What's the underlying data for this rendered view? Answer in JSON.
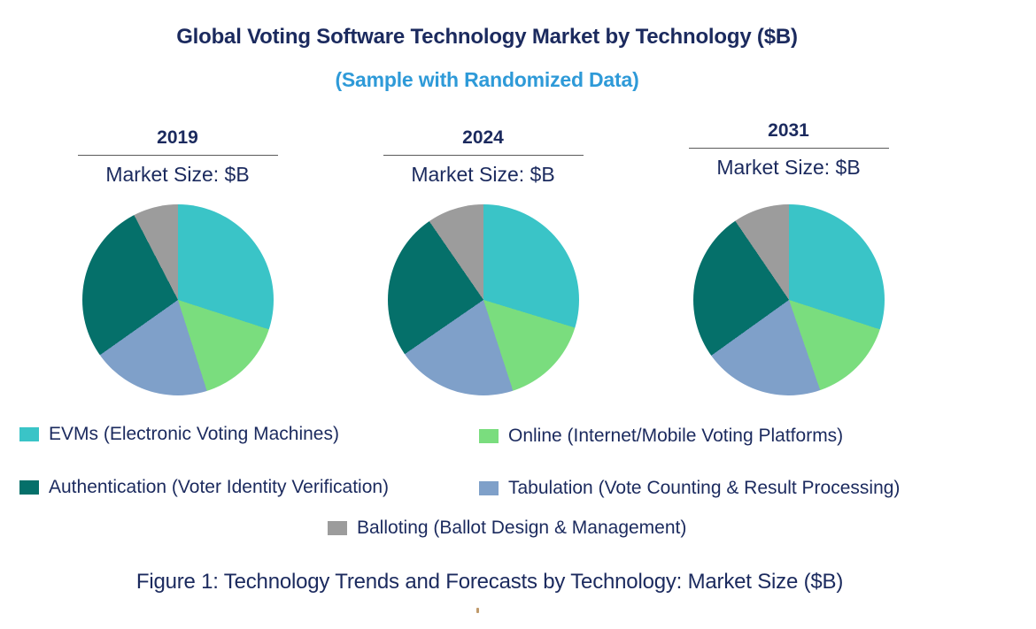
{
  "header": {
    "title": "Global Voting Software Technology Market by Technology ($B)",
    "subtitle": "(Sample with Randomized Data)"
  },
  "colors": {
    "navy": "#1b2a5e",
    "skyblue": "#2e9ad8",
    "ruleline": "#5a5a5a",
    "evms": "#3ac4c7",
    "online": "#7add7e",
    "authentication": "#05706a",
    "tabulation": "#7fa0c9",
    "balloting": "#9c9c9c"
  },
  "legend": {
    "position": "bottom",
    "items": [
      {
        "key": "evms",
        "label": "EVMs (Electronic Voting Machines)",
        "color": "#3ac4c7"
      },
      {
        "key": "online",
        "label": "Online (Internet/Mobile Voting Platforms)",
        "color": "#7add7e"
      },
      {
        "key": "authentication",
        "label": "Authentication (Voter Identity Verification)",
        "color": "#05706a"
      },
      {
        "key": "tabulation",
        "label": "Tabulation (Vote Counting & Result Processing)",
        "color": "#7fa0c9"
      },
      {
        "key": "balloting",
        "label": "Balloting (Ballot Design & Management)",
        "color": "#9c9c9c"
      }
    ]
  },
  "chart_data": [
    {
      "type": "pie",
      "title": "2019",
      "units": "Market Size: $B",
      "value_format": "percent_share",
      "start_angle_deg": 0,
      "direction": "clockwise",
      "grid": false,
      "legend_position": "bottom",
      "slices": [
        {
          "label": "EVMs (Electronic Voting Machines)",
          "value": 30.0,
          "color": "#3ac4c7"
        },
        {
          "label": "Online (Internet/Mobile Voting Platforms)",
          "value": 15.1,
          "color": "#7add7e"
        },
        {
          "label": "Tabulation (Vote Counting & Result Processing)",
          "value": 20.1,
          "color": "#7fa0c9"
        },
        {
          "label": "Authentication (Voter Identity Verification)",
          "value": 27.2,
          "color": "#05706a"
        },
        {
          "label": "Balloting (Ballot Design & Management)",
          "value": 7.6,
          "color": "#9c9c9c"
        }
      ]
    },
    {
      "type": "pie",
      "title": "2024",
      "units": "Market Size: $B",
      "value_format": "percent_share",
      "start_angle_deg": 0,
      "direction": "clockwise",
      "grid": false,
      "legend_position": "bottom",
      "slices": [
        {
          "label": "EVMs (Electronic Voting Machines)",
          "value": 29.7,
          "color": "#3ac4c7"
        },
        {
          "label": "Online (Internet/Mobile Voting Platforms)",
          "value": 15.3,
          "color": "#7add7e"
        },
        {
          "label": "Tabulation (Vote Counting & Result Processing)",
          "value": 20.4,
          "color": "#7fa0c9"
        },
        {
          "label": "Authentication (Voter Identity Verification)",
          "value": 25.0,
          "color": "#05706a"
        },
        {
          "label": "Balloting (Ballot Design & Management)",
          "value": 9.6,
          "color": "#9c9c9c"
        }
      ]
    },
    {
      "type": "pie",
      "title": "2031",
      "units": "Market Size: $B",
      "value_format": "percent_share",
      "start_angle_deg": 0,
      "direction": "clockwise",
      "grid": false,
      "legend_position": "bottom",
      "slices": [
        {
          "label": "EVMs (Electronic Voting Machines)",
          "value": 30.0,
          "color": "#3ac4c7"
        },
        {
          "label": "Online (Internet/Mobile Voting Platforms)",
          "value": 14.7,
          "color": "#7add7e"
        },
        {
          "label": "Tabulation (Vote Counting & Result Processing)",
          "value": 20.4,
          "color": "#7fa0c9"
        },
        {
          "label": "Authentication (Voter Identity Verification)",
          "value": 25.4,
          "color": "#05706a"
        },
        {
          "label": "Balloting (Ballot Design & Management)",
          "value": 9.5,
          "color": "#9c9c9c"
        }
      ]
    }
  ],
  "caption": {
    "text": "Figure 1: Technology Trends and Forecasts by Technology: Market Size ($B)"
  }
}
